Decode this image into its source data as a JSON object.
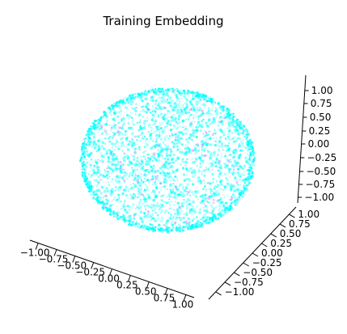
{
  "chart_data": {
    "type": "scatter",
    "title": "Training Embedding",
    "projection": "3d",
    "marker_color": "#00ffff",
    "accent_color": "#e040fb",
    "shape": "unit sphere",
    "axes": {
      "x": {
        "ticks": [
          "−1.00",
          "−0.75",
          "−0.50",
          "−0.25",
          "0.00",
          "0.25",
          "0.50",
          "0.75",
          "1.00"
        ],
        "range": [
          -1.0,
          1.0
        ]
      },
      "y": {
        "ticks": [
          "−1.00",
          "−0.75",
          "−0.50",
          "−0.25",
          "0.00",
          "0.25",
          "0.50",
          "0.75",
          "1.00"
        ],
        "range": [
          -1.0,
          1.0
        ]
      },
      "z": {
        "ticks": [
          "−1.00",
          "−0.75",
          "−0.50",
          "−0.25",
          "0.00",
          "0.25",
          "0.50",
          "0.75",
          "1.00"
        ],
        "range": [
          -1.0,
          1.0
        ]
      }
    },
    "grid": false
  }
}
